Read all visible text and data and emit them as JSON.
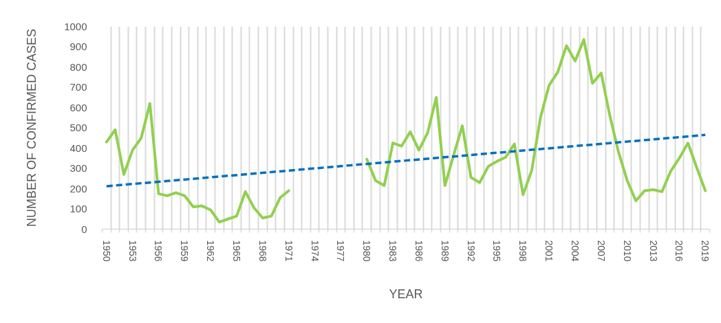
{
  "chart_data": {
    "type": "line",
    "xlabel": "YEAR",
    "ylabel": "NUMBER OF CONFIRMED CASES",
    "x": [
      1950,
      1951,
      1952,
      1953,
      1954,
      1955,
      1956,
      1957,
      1958,
      1959,
      1960,
      1961,
      1962,
      1963,
      1964,
      1965,
      1966,
      1967,
      1968,
      1969,
      1970,
      1971,
      1972,
      1973,
      1974,
      1975,
      1976,
      1977,
      1978,
      1979,
      1980,
      1981,
      1982,
      1983,
      1984,
      1985,
      1986,
      1987,
      1988,
      1989,
      1990,
      1991,
      1992,
      1993,
      1994,
      1995,
      1996,
      1997,
      1998,
      1999,
      2000,
      2001,
      2002,
      2003,
      2004,
      2005,
      2006,
      2007,
      2008,
      2009,
      2010,
      2011,
      2012,
      2013,
      2014,
      2015,
      2016,
      2017,
      2018,
      2019
    ],
    "xlim": [
      1949.5,
      2019.5
    ],
    "xticks": [
      1950,
      1953,
      1956,
      1959,
      1962,
      1965,
      1968,
      1971,
      1974,
      1977,
      1980,
      1983,
      1986,
      1989,
      1992,
      1995,
      1998,
      2001,
      2004,
      2007,
      2010,
      2013,
      2016,
      2019,
      {
        "value": 1949.5,
        "label": null
      },
      {
        "value": 1950.5,
        "label": null
      },
      {
        "value": 1951.5,
        "label": null
      },
      {
        "value": 1952.5,
        "label": null
      },
      {
        "value": 1953.5,
        "label": null
      },
      {
        "value": 1954.5,
        "label": null
      },
      {
        "value": 1955.5,
        "label": null
      },
      {
        "value": 1956.5,
        "label": null
      },
      {
        "value": 1957.5,
        "label": null
      },
      {
        "value": 1958.5,
        "label": null
      },
      {
        "value": 1959.5,
        "label": null
      },
      {
        "value": 1960.5,
        "label": null
      },
      {
        "value": 1961.5,
        "label": null
      },
      {
        "value": 1962.5,
        "label": null
      },
      {
        "value": 1963.5,
        "label": null
      },
      {
        "value": 1964.5,
        "label": null
      },
      {
        "value": 1965.5,
        "label": null
      },
      {
        "value": 1966.5,
        "label": null
      },
      {
        "value": 1967.5,
        "label": null
      },
      {
        "value": 1968.5,
        "label": null
      },
      {
        "value": 1969.5,
        "label": null
      },
      {
        "value": 1970.5,
        "label": null
      },
      {
        "value": 1971.5,
        "label": null
      },
      {
        "value": 1972.5,
        "label": null
      },
      {
        "value": 1973.5,
        "label": null
      },
      {
        "value": 1974.5,
        "label": null
      },
      {
        "value": 1975.5,
        "label": null
      },
      {
        "value": 1976.5,
        "label": null
      },
      {
        "value": 1977.5,
        "label": null
      },
      {
        "value": 1978.5,
        "label": null
      },
      {
        "value": 1979.5,
        "label": null
      },
      {
        "value": 1980.5,
        "label": null
      },
      {
        "value": 1981.5,
        "label": null
      },
      {
        "value": 1982.5,
        "label": null
      },
      {
        "value": 1983.5,
        "label": null
      },
      {
        "value": 1984.5,
        "label": null
      },
      {
        "value": 1985.5,
        "label": null
      },
      {
        "value": 1986.5,
        "label": null
      },
      {
        "value": 1987.5,
        "label": null
      },
      {
        "value": 1988.5,
        "label": null
      },
      {
        "value": 1989.5,
        "label": null
      },
      {
        "value": 1990.5,
        "label": null
      },
      {
        "value": 1991.5,
        "label": null
      },
      {
        "value": 1992.5,
        "label": null
      },
      {
        "value": 1993.5,
        "label": null
      },
      {
        "value": 1994.5,
        "label": null
      },
      {
        "value": 1995.5,
        "label": null
      },
      {
        "value": 1996.5,
        "label": null
      },
      {
        "value": 1997.5,
        "label": null
      },
      {
        "value": 1998.5,
        "label": null
      },
      {
        "value": 1999.5,
        "label": null
      },
      {
        "value": 2000.5,
        "label": null
      },
      {
        "value": 2001.5,
        "label": null
      },
      {
        "value": 2002.5,
        "label": null
      },
      {
        "value": 2003.5,
        "label": null
      },
      {
        "value": 2004.5,
        "label": null
      },
      {
        "value": 2005.5,
        "label": null
      },
      {
        "value": 2006.5,
        "label": null
      },
      {
        "value": 2007.5,
        "label": null
      },
      {
        "value": 2008.5,
        "label": null
      },
      {
        "value": 2009.5,
        "label": null
      },
      {
        "value": 2010.5,
        "label": null
      },
      {
        "value": 2011.5,
        "label": null
      },
      {
        "value": 2012.5,
        "label": null
      },
      {
        "value": 2013.5,
        "label": null
      },
      {
        "value": 2014.5,
        "label": null
      },
      {
        "value": 2015.5,
        "label": null
      },
      {
        "value": 2016.5,
        "label": null
      },
      {
        "value": 2017.5,
        "label": null
      },
      {
        "value": 2018.5,
        "label": null
      },
      {
        "value": 2019.5,
        "label": null
      }
    ],
    "ylim": [
      0,
      1000
    ],
    "yticks": [
      0,
      100,
      200,
      300,
      400,
      500,
      600,
      700,
      800,
      900,
      1000
    ],
    "grid": "x",
    "series": [
      {
        "color": "#92d050",
        "line_style": "solid",
        "values": [
          430,
          490,
          270,
          390,
          450,
          620,
          175,
          165,
          180,
          165,
          110,
          115,
          95,
          35,
          50,
          65,
          185,
          105,
          55,
          65,
          155,
          190,
          null,
          null,
          null,
          null,
          null,
          null,
          null,
          null,
          345,
          240,
          215,
          425,
          410,
          480,
          390,
          475,
          650,
          215,
          365,
          510,
          255,
          230,
          310,
          335,
          355,
          420,
          170,
          290,
          550,
          710,
          775,
          905,
          830,
          935,
          720,
          770,
          560,
          380,
          240,
          140,
          190,
          195,
          185,
          285,
          350,
          425,
          305,
          190
        ]
      },
      {
        "type": "line",
        "x": [
          1950,
          2019
        ],
        "values": [
          212,
          465
        ],
        "color": "#0070c0",
        "line_style": "dashed"
      }
    ]
  }
}
